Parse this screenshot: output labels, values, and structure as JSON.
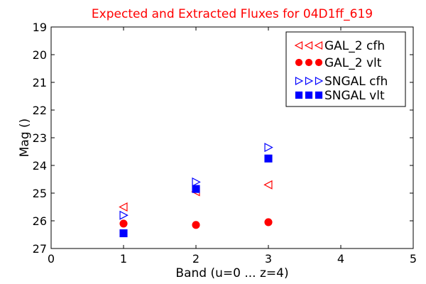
{
  "chart_data": {
    "type": "scatter",
    "title": "Expected and Extracted Fluxes for 04D1ff_619",
    "title_color": "#ff0000",
    "xlabel": "Band (u=0 ... z=4)",
    "ylabel": "Mag ()",
    "xlim": [
      0,
      5
    ],
    "ylim": [
      27,
      19
    ],
    "y_inverted": true,
    "x_ticks": [
      "0",
      "1",
      "2",
      "3",
      "4",
      "5"
    ],
    "y_ticks": [
      "19",
      "20",
      "21",
      "22",
      "23",
      "24",
      "25",
      "26",
      "27"
    ],
    "grid": false,
    "legend_position": "top-right",
    "series": [
      {
        "name": "GAL_2 cfh",
        "marker": "triangle-left",
        "filled": false,
        "color": "#ff0000",
        "x": [
          1,
          2,
          3
        ],
        "y": [
          25.5,
          24.95,
          24.7
        ]
      },
      {
        "name": "GAL_2 vlt",
        "marker": "circle",
        "filled": true,
        "color": "#ff0000",
        "x": [
          1,
          2,
          3
        ],
        "y": [
          26.1,
          26.15,
          26.05
        ]
      },
      {
        "name": "SNGAL cfh",
        "marker": "triangle-right",
        "filled": false,
        "color": "#0000ff",
        "x": [
          1,
          2,
          3
        ],
        "y": [
          25.8,
          24.6,
          23.35
        ]
      },
      {
        "name": "SNGAL vlt",
        "marker": "square",
        "filled": true,
        "color": "#0000ff",
        "x": [
          1,
          2,
          3
        ],
        "y": [
          26.45,
          24.85,
          23.75
        ]
      }
    ]
  }
}
